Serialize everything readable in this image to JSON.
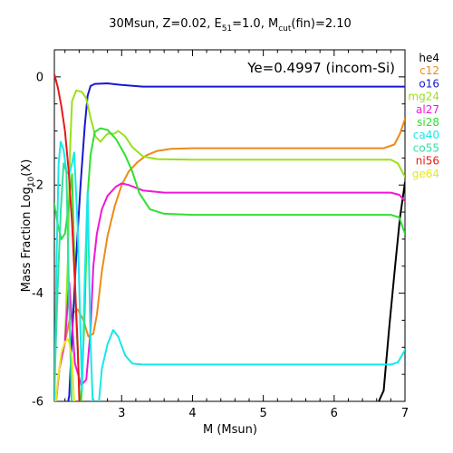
{
  "chart_data": {
    "type": "line",
    "title": {
      "prefix": "30Msun, Z=0.02, E",
      "e_sub": "51",
      "mid": "=1.0, M",
      "m_sub": "cut",
      "suffix": "(fin)=2.10"
    },
    "annotation": "Ye=0.4997 (incom-Si)",
    "xlabel": "M (Msun)",
    "ylabel": {
      "main": "Mass Fraction Log",
      "sub": "10",
      "suffix": "(X)"
    },
    "xlim": [
      2.05,
      7.0
    ],
    "ylim": [
      -6,
      0.5
    ],
    "xticks": [
      3,
      4,
      5,
      6,
      7
    ],
    "yticks": [
      0,
      -2,
      -4,
      -6
    ],
    "grid": false,
    "legend_position": "right-outside",
    "series": [
      {
        "name": "he4",
        "color": "#000000",
        "points": [
          [
            6.55,
            -6.3
          ],
          [
            6.63,
            -6.0
          ],
          [
            6.7,
            -5.8
          ],
          [
            6.78,
            -4.6
          ],
          [
            6.86,
            -3.5
          ],
          [
            6.93,
            -2.6
          ],
          [
            7.0,
            -1.95
          ]
        ]
      },
      {
        "name": "c12",
        "color": "#ee8a18",
        "points": [
          [
            2.05,
            -6.3
          ],
          [
            2.12,
            -5.4
          ],
          [
            2.2,
            -4.9
          ],
          [
            2.28,
            -4.4
          ],
          [
            2.38,
            -4.3
          ],
          [
            2.46,
            -4.5
          ],
          [
            2.53,
            -4.8
          ],
          [
            2.6,
            -4.75
          ],
          [
            2.65,
            -4.4
          ],
          [
            2.72,
            -3.6
          ],
          [
            2.8,
            -2.95
          ],
          [
            2.9,
            -2.4
          ],
          [
            3.0,
            -2.0
          ],
          [
            3.1,
            -1.75
          ],
          [
            3.22,
            -1.58
          ],
          [
            3.35,
            -1.45
          ],
          [
            3.5,
            -1.37
          ],
          [
            3.7,
            -1.33
          ],
          [
            4.0,
            -1.32
          ],
          [
            5.0,
            -1.32
          ],
          [
            6.0,
            -1.32
          ],
          [
            6.7,
            -1.32
          ],
          [
            6.85,
            -1.25
          ],
          [
            6.93,
            -1.05
          ],
          [
            7.0,
            -0.78
          ]
        ]
      },
      {
        "name": "o16",
        "color": "#1818d0",
        "points": [
          [
            2.2,
            -6.3
          ],
          [
            2.26,
            -5.9
          ],
          [
            2.3,
            -4.8
          ],
          [
            2.36,
            -3.3
          ],
          [
            2.42,
            -2.0
          ],
          [
            2.48,
            -0.9
          ],
          [
            2.52,
            -0.35
          ],
          [
            2.56,
            -0.17
          ],
          [
            2.62,
            -0.13
          ],
          [
            2.8,
            -0.12
          ],
          [
            3.0,
            -0.15
          ],
          [
            3.3,
            -0.18
          ],
          [
            4.0,
            -0.18
          ],
          [
            5.0,
            -0.18
          ],
          [
            6.0,
            -0.18
          ],
          [
            7.0,
            -0.18
          ]
        ]
      },
      {
        "name": "mg24",
        "color": "#9ae018",
        "points": [
          [
            2.05,
            -6.3
          ],
          [
            2.12,
            -5.4
          ],
          [
            2.2,
            -4.9
          ],
          [
            2.24,
            -3.4
          ],
          [
            2.27,
            -1.4
          ],
          [
            2.3,
            -0.45
          ],
          [
            2.36,
            -0.25
          ],
          [
            2.44,
            -0.28
          ],
          [
            2.5,
            -0.4
          ],
          [
            2.56,
            -0.75
          ],
          [
            2.63,
            -1.1
          ],
          [
            2.7,
            -1.2
          ],
          [
            2.8,
            -1.05
          ],
          [
            2.9,
            -1.05
          ],
          [
            2.95,
            -1.0
          ],
          [
            3.05,
            -1.1
          ],
          [
            3.15,
            -1.3
          ],
          [
            3.3,
            -1.47
          ],
          [
            3.5,
            -1.52
          ],
          [
            4.0,
            -1.53
          ],
          [
            5.0,
            -1.53
          ],
          [
            6.0,
            -1.53
          ],
          [
            6.8,
            -1.53
          ],
          [
            6.9,
            -1.6
          ],
          [
            7.0,
            -1.85
          ]
        ]
      },
      {
        "name": "al27",
        "color": "#f018d8",
        "points": [
          [
            2.05,
            -6.3
          ],
          [
            2.12,
            -5.4
          ],
          [
            2.2,
            -4.9
          ],
          [
            2.26,
            -3.8
          ],
          [
            2.34,
            -5.3
          ],
          [
            2.43,
            -5.7
          ],
          [
            2.5,
            -5.6
          ],
          [
            2.56,
            -4.7
          ],
          [
            2.6,
            -3.5
          ],
          [
            2.65,
            -2.9
          ],
          [
            2.72,
            -2.45
          ],
          [
            2.8,
            -2.2
          ],
          [
            2.92,
            -2.03
          ],
          [
            3.0,
            -1.97
          ],
          [
            3.1,
            -2.0
          ],
          [
            3.3,
            -2.1
          ],
          [
            3.6,
            -2.14
          ],
          [
            4.0,
            -2.14
          ],
          [
            5.0,
            -2.14
          ],
          [
            6.0,
            -2.14
          ],
          [
            6.8,
            -2.14
          ],
          [
            6.92,
            -2.18
          ],
          [
            7.0,
            -2.3
          ]
        ]
      },
      {
        "name": "si28",
        "color": "#30e030",
        "points": [
          [
            2.05,
            -2.35
          ],
          [
            2.1,
            -2.75
          ],
          [
            2.15,
            -3.0
          ],
          [
            2.2,
            -2.9
          ],
          [
            2.25,
            -2.4
          ],
          [
            2.3,
            -1.8
          ],
          [
            2.35,
            -4.2
          ],
          [
            2.42,
            -6.3
          ],
          [
            2.48,
            -4.3
          ],
          [
            2.52,
            -2.2
          ],
          [
            2.56,
            -1.45
          ],
          [
            2.62,
            -1.02
          ],
          [
            2.7,
            -0.95
          ],
          [
            2.8,
            -0.98
          ],
          [
            2.92,
            -1.15
          ],
          [
            3.05,
            -1.45
          ],
          [
            3.15,
            -1.75
          ],
          [
            3.25,
            -2.15
          ],
          [
            3.4,
            -2.45
          ],
          [
            3.6,
            -2.53
          ],
          [
            4.0,
            -2.55
          ],
          [
            5.0,
            -2.55
          ],
          [
            6.0,
            -2.55
          ],
          [
            6.8,
            -2.55
          ],
          [
            6.92,
            -2.6
          ],
          [
            7.0,
            -2.9
          ]
        ]
      },
      {
        "name": "ca40",
        "color": "#18e8e8",
        "points": [
          [
            2.05,
            -6.3
          ],
          [
            2.08,
            -3.5
          ],
          [
            2.11,
            -1.6
          ],
          [
            2.14,
            -1.2
          ],
          [
            2.18,
            -1.35
          ],
          [
            2.22,
            -1.75
          ],
          [
            2.26,
            -1.8
          ],
          [
            2.3,
            -1.6
          ],
          [
            2.33,
            -1.4
          ],
          [
            2.38,
            -2.8
          ],
          [
            2.44,
            -5.8
          ],
          [
            2.48,
            -3.7
          ],
          [
            2.52,
            -2.1
          ],
          [
            2.56,
            -4.9
          ],
          [
            2.6,
            -6.3
          ],
          [
            2.66,
            -6.3
          ],
          [
            2.72,
            -5.4
          ],
          [
            2.8,
            -4.95
          ],
          [
            2.88,
            -4.68
          ],
          [
            2.95,
            -4.8
          ],
          [
            3.05,
            -5.15
          ],
          [
            3.15,
            -5.3
          ],
          [
            3.3,
            -5.32
          ],
          [
            4.0,
            -5.32
          ],
          [
            5.0,
            -5.32
          ],
          [
            6.0,
            -5.32
          ],
          [
            6.8,
            -5.32
          ],
          [
            6.9,
            -5.28
          ],
          [
            7.0,
            -5.05
          ]
        ]
      },
      {
        "name": "co55",
        "color": "#30e0a0",
        "points": [
          [
            2.05,
            -5.75
          ],
          [
            2.1,
            -3.8
          ],
          [
            2.14,
            -2.5
          ],
          [
            2.18,
            -1.6
          ],
          [
            2.22,
            -1.75
          ],
          [
            2.26,
            -4.2
          ],
          [
            2.3,
            -6.3
          ]
        ]
      },
      {
        "name": "ni56",
        "color": "#e81818",
        "points": [
          [
            2.05,
            0.05
          ],
          [
            2.1,
            -0.2
          ],
          [
            2.15,
            -0.55
          ],
          [
            2.2,
            -1.0
          ],
          [
            2.25,
            -1.7
          ],
          [
            2.3,
            -2.7
          ],
          [
            2.34,
            -3.8
          ],
          [
            2.38,
            -5.0
          ],
          [
            2.41,
            -6.3
          ]
        ]
      },
      {
        "name": "ge64",
        "color": "#e8e818",
        "points": [
          [
            2.05,
            -6.3
          ],
          [
            2.1,
            -5.6
          ],
          [
            2.15,
            -5.1
          ],
          [
            2.2,
            -4.9
          ],
          [
            2.25,
            -4.85
          ],
          [
            2.3,
            -5.2
          ],
          [
            2.34,
            -6.3
          ]
        ]
      }
    ]
  }
}
